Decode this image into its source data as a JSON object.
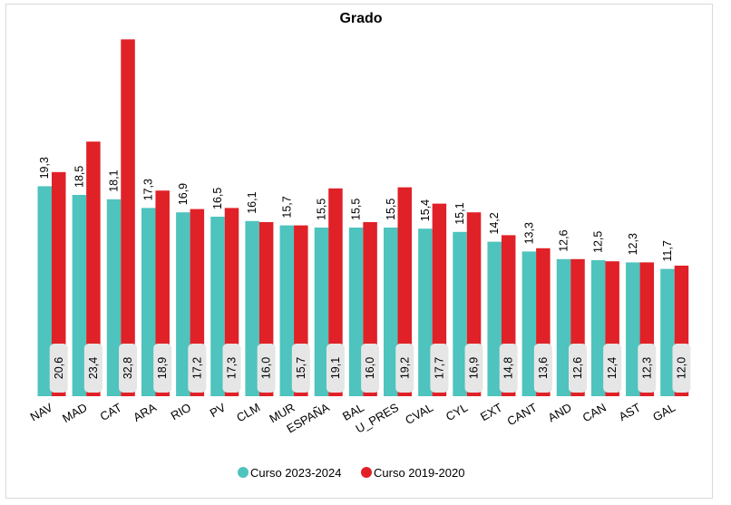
{
  "chart_data": {
    "type": "bar",
    "title": "Grado",
    "categories": [
      "NAV",
      "MAD",
      "CAT",
      "ARA",
      "RIO",
      "PV",
      "CLM",
      "MUR",
      "ESPAÑA",
      "BAL",
      "U_PRES",
      "CVAL",
      "CYL",
      "EXT",
      "CANT",
      "AND",
      "CAN",
      "AST",
      "GAL"
    ],
    "series": [
      {
        "name": "Curso 2023-2024",
        "color": "#4fc3bd",
        "values": [
          19.3,
          18.5,
          18.1,
          17.3,
          16.9,
          16.5,
          16.1,
          15.7,
          15.5,
          15.5,
          15.5,
          15.4,
          15.1,
          14.2,
          13.3,
          12.6,
          12.5,
          12.3,
          11.7
        ],
        "labels": [
          "19,3",
          "18,5",
          "18,1",
          "17,3",
          "16,9",
          "16,5",
          "16,1",
          "15,7",
          "15,5",
          "15,5",
          "15,5",
          "15,4",
          "15,1",
          "14,2",
          "13,3",
          "12,6",
          "12,5",
          "12,3",
          "11,7"
        ]
      },
      {
        "name": "Curso 2019-2020",
        "color": "#e02127",
        "values": [
          20.6,
          23.4,
          32.8,
          18.9,
          17.2,
          17.3,
          16.0,
          15.7,
          19.1,
          16.0,
          19.2,
          17.7,
          16.9,
          14.8,
          13.6,
          12.6,
          12.4,
          12.3,
          12.0
        ],
        "labels": [
          "20,6",
          "23,4",
          "32,8",
          "18,9",
          "17,2",
          "17,3",
          "16,0",
          "15,7",
          "19,1",
          "16,0",
          "19,2",
          "17,7",
          "16,9",
          "14,8",
          "13,6",
          "12,6",
          "12,4",
          "12,3",
          "12,0"
        ]
      }
    ],
    "legend_position": "bottom",
    "grid": false
  }
}
